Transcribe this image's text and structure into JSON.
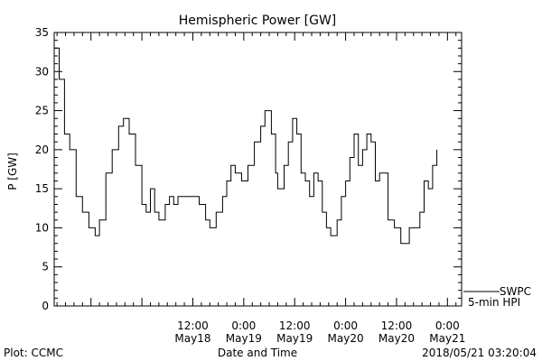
{
  "chart_data": {
    "type": "line",
    "title": "Hemispheric Power [GW]",
    "ylabel": "P [GW]",
    "xlabel": "Date and Time",
    "ylim": [
      0,
      35
    ],
    "xlim": [
      "2018-05-17 03:20",
      "2018-05-21 03:20"
    ],
    "yticks": [
      0,
      5,
      10,
      15,
      20,
      25,
      30,
      35
    ],
    "grid": false,
    "xticks": [
      {
        "at": "2018-05-18 12:00",
        "time": "12:00",
        "date": "May18"
      },
      {
        "at": "2018-05-19 00:00",
        "time": "0:00",
        "date": "May19"
      },
      {
        "at": "2018-05-19 12:00",
        "time": "12:00",
        "date": "May19"
      },
      {
        "at": "2018-05-20 00:00",
        "time": "0:00",
        "date": "May20"
      },
      {
        "at": "2018-05-20 12:00",
        "time": "12:00",
        "date": "May20"
      },
      {
        "at": "2018-05-21 00:00",
        "time": "0:00",
        "date": "May21"
      }
    ],
    "legend": {
      "position": "bottom-right",
      "source": "SWPC",
      "label": "5-min HPI"
    },
    "series": [
      {
        "name": "SWPC 5-min HPI",
        "points": [
          [
            "2018-05-17 03:20",
            33
          ],
          [
            "2018-05-17 04:30",
            29
          ],
          [
            "2018-05-17 05:45",
            22
          ],
          [
            "2018-05-17 07:00",
            20
          ],
          [
            "2018-05-17 08:30",
            14
          ],
          [
            "2018-05-17 10:00",
            12
          ],
          [
            "2018-05-17 11:30",
            10
          ],
          [
            "2018-05-17 13:00",
            9
          ],
          [
            "2018-05-17 14:00",
            11
          ],
          [
            "2018-05-17 15:30",
            17
          ],
          [
            "2018-05-17 17:00",
            20
          ],
          [
            "2018-05-17 18:30",
            23
          ],
          [
            "2018-05-17 19:40",
            24
          ],
          [
            "2018-05-17 21:00",
            22
          ],
          [
            "2018-05-17 22:30",
            18
          ],
          [
            "2018-05-18 00:00",
            13
          ],
          [
            "2018-05-18 01:00",
            12
          ],
          [
            "2018-05-18 02:00",
            15
          ],
          [
            "2018-05-18 03:00",
            12
          ],
          [
            "2018-05-18 04:00",
            11
          ],
          [
            "2018-05-18 05:30",
            13
          ],
          [
            "2018-05-18 06:30",
            14
          ],
          [
            "2018-05-18 07:30",
            13
          ],
          [
            "2018-05-18 08:30",
            14
          ],
          [
            "2018-05-18 10:00",
            14
          ],
          [
            "2018-05-18 12:00",
            14
          ],
          [
            "2018-05-18 13:30",
            13
          ],
          [
            "2018-05-18 15:00",
            11
          ],
          [
            "2018-05-18 16:00",
            10
          ],
          [
            "2018-05-18 17:30",
            12
          ],
          [
            "2018-05-18 19:00",
            14
          ],
          [
            "2018-05-18 20:00",
            16
          ],
          [
            "2018-05-18 21:00",
            18
          ],
          [
            "2018-05-18 22:00",
            17
          ],
          [
            "2018-05-18 23:30",
            16
          ],
          [
            "2018-05-19 01:00",
            18
          ],
          [
            "2018-05-19 02:30",
            21
          ],
          [
            "2018-05-19 04:00",
            23
          ],
          [
            "2018-05-19 05:00",
            25
          ],
          [
            "2018-05-19 06:30",
            22
          ],
          [
            "2018-05-19 07:30",
            17
          ],
          [
            "2018-05-19 08:00",
            15
          ],
          [
            "2018-05-19 09:30",
            18
          ],
          [
            "2018-05-19 10:30",
            21
          ],
          [
            "2018-05-19 11:30",
            24
          ],
          [
            "2018-05-19 12:30",
            22
          ],
          [
            "2018-05-19 13:30",
            17
          ],
          [
            "2018-05-19 14:30",
            16
          ],
          [
            "2018-05-19 15:30",
            14
          ],
          [
            "2018-05-19 16:30",
            17
          ],
          [
            "2018-05-19 17:30",
            16
          ],
          [
            "2018-05-19 18:30",
            12
          ],
          [
            "2018-05-19 19:30",
            10
          ],
          [
            "2018-05-19 20:30",
            9
          ],
          [
            "2018-05-19 22:00",
            11
          ],
          [
            "2018-05-19 23:00",
            14
          ],
          [
            "2018-05-20 00:00",
            16
          ],
          [
            "2018-05-20 01:00",
            19
          ],
          [
            "2018-05-20 02:00",
            22
          ],
          [
            "2018-05-20 03:00",
            18
          ],
          [
            "2018-05-20 04:00",
            20
          ],
          [
            "2018-05-20 05:00",
            22
          ],
          [
            "2018-05-20 06:00",
            21
          ],
          [
            "2018-05-20 07:00",
            16
          ],
          [
            "2018-05-20 08:00",
            17
          ],
          [
            "2018-05-20 09:00",
            17
          ],
          [
            "2018-05-20 10:00",
            11
          ],
          [
            "2018-05-20 11:30",
            10
          ],
          [
            "2018-05-20 13:00",
            8
          ],
          [
            "2018-05-20 14:00",
            8
          ],
          [
            "2018-05-20 15:00",
            10
          ],
          [
            "2018-05-20 16:30",
            10
          ],
          [
            "2018-05-20 17:30",
            12
          ],
          [
            "2018-05-20 18:30",
            16
          ],
          [
            "2018-05-20 19:30",
            15
          ],
          [
            "2018-05-20 20:30",
            18
          ],
          [
            "2018-05-20 21:30",
            20
          ]
        ]
      }
    ]
  },
  "footer": {
    "plot_credit": "Plot: CCMC",
    "timestamp": "2018/05/21 03:20:04"
  }
}
